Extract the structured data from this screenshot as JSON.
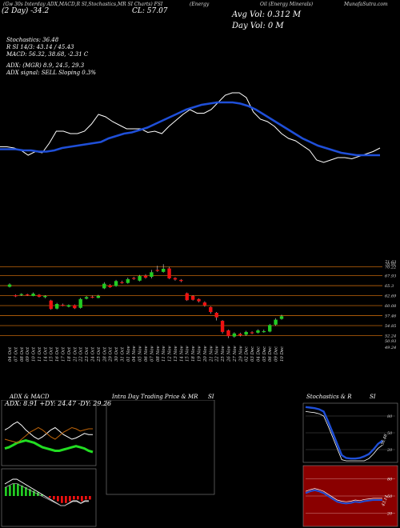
{
  "header": {
    "symbol": "(Gw 30s Interday ADX,MACD,R SI,Stochastics,MR SI Charts) FSI",
    "sector": "(Energy",
    "symbol_short": "FSI",
    "ticker_left": "CL (Crude Oil)",
    "price_left": "(2 Day) -34.2",
    "close_label": "CL: 57.07",
    "avg_vol_label": "Avg Vol: 0.312  M",
    "day_vol_label": "Day Vol: 0   M",
    "source": "MunafaSutra.com",
    "oil_label": "Oil (Energy Minerals)"
  },
  "indicators": {
    "stochastics": "Stochastics: 36.48",
    "rsi": "R SI 14/3: 43.14  / 45.43",
    "macd": "MACD: 56.32, 38.68, -2.31 C",
    "adx": "ADX:                        (MGR) 8.9,  24.5,  29.3",
    "adx_signal": "ADX  signal: SELL  Sloping 0.3%"
  },
  "colors": {
    "background": "#000000",
    "ma_line": "#1f4fd8",
    "price_line": "#ffffff",
    "up_candle": "#22cc22",
    "down_candle": "#ee1111",
    "level_line": "#c0650a",
    "adx_green": "#22dd22",
    "rsi_bg": "#8a0000",
    "stoch_bg": "#000000"
  },
  "chart_data": [
    {
      "type": "line",
      "title": "Price vs moving average",
      "series": [
        {
          "name": "",
          "values": [
            41,
            41,
            40,
            38,
            34,
            37,
            36,
            44,
            54,
            54,
            52,
            52,
            54,
            60,
            68,
            66,
            62,
            59,
            56,
            56,
            56,
            53,
            54,
            52,
            58,
            63,
            68,
            72,
            69,
            69,
            72,
            78,
            84,
            86,
            86,
            82,
            70,
            64,
            62,
            58,
            52,
            48,
            46,
            42,
            38,
            30,
            28,
            30,
            32,
            32,
            31,
            33,
            35,
            37,
            40
          ]
        },
        {
          "name": "",
          "values": [
            39,
            39,
            39,
            38,
            38,
            37,
            37,
            38,
            40,
            41,
            42,
            43,
            44,
            45,
            48,
            50,
            52,
            53,
            55,
            57,
            60,
            63,
            66,
            69,
            72,
            74,
            76,
            77,
            78,
            78,
            78,
            77,
            75,
            72,
            68,
            64,
            60,
            56,
            52,
            48,
            45,
            42,
            40,
            38,
            36,
            35,
            34,
            34,
            34,
            34
          ]
        }
      ]
    },
    {
      "type": "bar",
      "title": "Daily candles",
      "price_levels": [
        "71.63",
        "70.91",
        "70.22",
        "67.93",
        "65.3",
        "62.69",
        "60.08",
        "57.46",
        "54.85",
        "52.24",
        "50.93",
        "49.24"
      ],
      "candles": [
        {
          "d": "04 Oct",
          "o": 65.0,
          "c": 65.6,
          "h": 65.9,
          "l": 64.8
        },
        {
          "d": "07 Oct",
          "o": 62.8,
          "c": 62.5,
          "h": 63.0,
          "l": 62.3
        },
        {
          "d": "08 Oct",
          "o": 62.9,
          "c": 63.1,
          "h": 63.3,
          "l": 62.6
        },
        {
          "d": "09 Oct",
          "o": 63.0,
          "c": 62.8,
          "h": 63.2,
          "l": 62.6
        },
        {
          "d": "10 Oct",
          "o": 62.6,
          "c": 63.2,
          "h": 63.5,
          "l": 62.5
        },
        {
          "d": "11 Oct",
          "o": 62.9,
          "c": 62.4,
          "h": 63.1,
          "l": 62.2
        },
        {
          "d": "14 Oct",
          "o": 62.3,
          "c": 62.6,
          "h": 62.8,
          "l": 62.0
        },
        {
          "d": "15 Oct",
          "o": 61.4,
          "c": 59.2,
          "h": 61.6,
          "l": 59.0
        },
        {
          "d": "16 Oct",
          "o": 59.3,
          "c": 60.5,
          "h": 60.8,
          "l": 59.1
        },
        {
          "d": "17 Oct",
          "o": 60.3,
          "c": 60.1,
          "h": 60.6,
          "l": 59.9
        },
        {
          "d": "18 Oct",
          "o": 59.8,
          "c": 60.2,
          "h": 60.4,
          "l": 59.6
        },
        {
          "d": "21 Oct",
          "o": 60.2,
          "c": 59.4,
          "h": 60.4,
          "l": 59.2
        },
        {
          "d": "22 Oct",
          "o": 59.5,
          "c": 61.8,
          "h": 62.1,
          "l": 59.3
        },
        {
          "d": "23 Oct",
          "o": 61.9,
          "c": 62.3,
          "h": 62.6,
          "l": 61.7
        },
        {
          "d": "24 Oct",
          "o": 62.4,
          "c": 62.2,
          "h": 62.7,
          "l": 62.0
        },
        {
          "d": "25 Oct",
          "o": 62.1,
          "c": 62.6,
          "h": 62.9,
          "l": 62.0
        },
        {
          "d": "28 Oct",
          "o": 64.6,
          "c": 65.8,
          "h": 66.2,
          "l": 64.4
        },
        {
          "d": "29 Oct",
          "o": 65.4,
          "c": 64.9,
          "h": 65.7,
          "l": 64.7
        },
        {
          "d": "30 Oct",
          "o": 65.2,
          "c": 66.5,
          "h": 66.8,
          "l": 65.0
        },
        {
          "d": "31 Oct",
          "o": 66.2,
          "c": 66.0,
          "h": 66.6,
          "l": 65.8
        },
        {
          "d": "01 Nov",
          "o": 66.0,
          "c": 67.0,
          "h": 67.4,
          "l": 65.8
        },
        {
          "d": "04 Nov",
          "o": 67.3,
          "c": 67.1,
          "h": 67.6,
          "l": 66.8
        },
        {
          "d": "05 Nov",
          "o": 66.6,
          "c": 67.8,
          "h": 68.1,
          "l": 66.4
        },
        {
          "d": "06 Nov",
          "o": 67.9,
          "c": 67.4,
          "h": 68.3,
          "l": 67.1
        },
        {
          "d": "07 Nov",
          "o": 67.6,
          "c": 68.8,
          "h": 69.4,
          "l": 67.2
        },
        {
          "d": "08 Nov",
          "o": 69.4,
          "c": 69.2,
          "h": 70.5,
          "l": 68.9
        },
        {
          "d": "11 Nov",
          "o": 68.9,
          "c": 69.7,
          "h": 70.9,
          "l": 68.7
        },
        {
          "d": "12 Nov",
          "o": 69.8,
          "c": 67.2,
          "h": 70.2,
          "l": 67.0
        },
        {
          "d": "13 Nov",
          "o": 67.3,
          "c": 66.9,
          "h": 67.5,
          "l": 66.6
        },
        {
          "d": "14 Nov",
          "o": 66.8,
          "c": 66.5,
          "h": 67.0,
          "l": 66.2
        },
        {
          "d": "15 Nov",
          "o": 63.3,
          "c": 61.5,
          "h": 63.5,
          "l": 61.3
        },
        {
          "d": "18 Nov",
          "o": 62.6,
          "c": 61.6,
          "h": 62.8,
          "l": 61.4
        },
        {
          "d": "19 Nov",
          "o": 61.8,
          "c": 61.2,
          "h": 62.0,
          "l": 60.9
        },
        {
          "d": "20 Nov",
          "o": 60.9,
          "c": 60.1,
          "h": 61.2,
          "l": 59.8
        },
        {
          "d": "21 Nov",
          "o": 59.7,
          "c": 58.4,
          "h": 59.9,
          "l": 58.0
        },
        {
          "d": "22 Nov",
          "o": 58.2,
          "c": 57.0,
          "h": 58.4,
          "l": 56.2
        },
        {
          "d": "25 Nov",
          "o": 56.1,
          "c": 53.2,
          "h": 56.3,
          "l": 52.8
        },
        {
          "d": "26 Nov",
          "o": 53.6,
          "c": 52.1,
          "h": 53.8,
          "l": 51.6
        },
        {
          "d": "27 Nov",
          "o": 52.0,
          "c": 52.8,
          "h": 53.1,
          "l": 51.7
        },
        {
          "d": "29 Nov",
          "o": 52.7,
          "c": 52.3,
          "h": 53.0,
          "l": 52.0
        },
        {
          "d": "02 Dec",
          "o": 52.5,
          "c": 53.2,
          "h": 53.5,
          "l": 52.2
        },
        {
          "d": "03 Dec",
          "o": 53.1,
          "c": 52.9,
          "h": 53.4,
          "l": 52.6
        },
        {
          "d": "04 Dec",
          "o": 53.0,
          "c": 53.6,
          "h": 53.9,
          "l": 52.8
        },
        {
          "d": "05 Dec",
          "o": 53.4,
          "c": 53.4,
          "h": 53.8,
          "l": 53.0
        },
        {
          "d": "06 Dec",
          "o": 53.3,
          "c": 55.0,
          "h": 55.3,
          "l": 53.1
        },
        {
          "d": "09 Dec",
          "o": 55.1,
          "c": 56.4,
          "h": 56.8,
          "l": 54.8
        },
        {
          "d": "10 Dec",
          "o": 56.6,
          "c": 57.3,
          "h": 57.7,
          "l": 56.4
        }
      ],
      "ylim": [
        49,
        72
      ]
    },
    {
      "type": "line",
      "title": "ADX & MACD",
      "stat": "ADX: 8.91  +DY: 24.47  -DY: 29.26",
      "series": [
        {
          "name": "ADX",
          "values": [
            12,
            13,
            15,
            17,
            18,
            19,
            18,
            17,
            15,
            13,
            12,
            11,
            10,
            10,
            11,
            12,
            13,
            14,
            13,
            12,
            10,
            9
          ]
        },
        {
          "name": "+DY",
          "values": [
            28,
            30,
            33,
            35,
            32,
            28,
            25,
            22,
            20,
            22,
            25,
            28,
            30,
            27,
            24,
            22,
            20,
            21,
            23,
            25,
            24,
            24
          ]
        },
        {
          "name": "-DY",
          "values": [
            20,
            19,
            18,
            17,
            20,
            23,
            26,
            28,
            30,
            28,
            25,
            22,
            20,
            23,
            26,
            28,
            30,
            29,
            27,
            28,
            29,
            29
          ]
        }
      ],
      "histogram": [
        5,
        6,
        7,
        7,
        6,
        5,
        4,
        3,
        2,
        1,
        0,
        -1,
        -2,
        -3,
        -4,
        -4,
        -3,
        -2,
        -2,
        -3,
        -2,
        -2
      ]
    },
    {
      "type": "line",
      "title": "Stochastics & RSI",
      "stoch_ticks": [
        "80",
        "50",
        "20"
      ],
      "rsi_ticks": [
        "80",
        "50",
        "20"
      ],
      "stoch_label": "36.48",
      "rsi_label": "43.14",
      "stoch": [
        96,
        95,
        94,
        92,
        88,
        70,
        50,
        30,
        10,
        5,
        4,
        4,
        5,
        8,
        12,
        20,
        30,
        36
      ],
      "rsi": [
        55,
        58,
        60,
        58,
        55,
        50,
        45,
        40,
        38,
        37,
        38,
        40,
        39,
        41,
        42,
        43,
        43,
        43
      ]
    }
  ],
  "panels": {
    "adx_title": "ADX  & MACD",
    "intra_title": "Intra  Day Trading Price  & MR",
    "intra_title2": "SI",
    "stoch_title": "Stochastics & R",
    "stoch_title2": "SI"
  }
}
